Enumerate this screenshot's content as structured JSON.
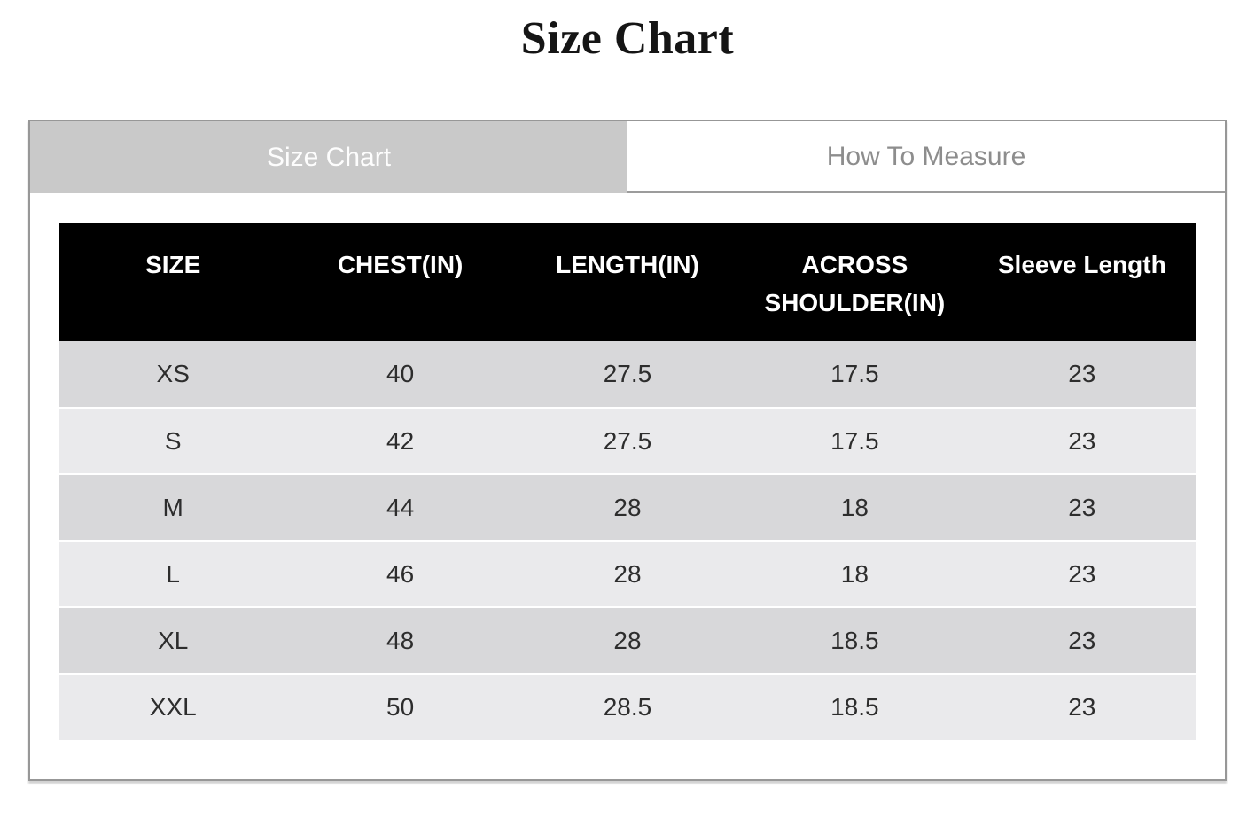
{
  "page": {
    "title": "Size Chart"
  },
  "tabs": {
    "size_chart": {
      "label": "Size Chart",
      "active": true
    },
    "how_to_measure": {
      "label": "How To Measure",
      "active": false
    }
  },
  "size_table": {
    "columns": [
      "SIZE",
      "CHEST(IN)",
      "LENGTH(IN)",
      "ACROSS SHOULDER(IN)",
      "Sleeve Length"
    ],
    "rows": [
      [
        "XS",
        "40",
        "27.5",
        "17.5",
        "23"
      ],
      [
        "S",
        "42",
        "27.5",
        "17.5",
        "23"
      ],
      [
        "M",
        "44",
        "28",
        "18",
        "23"
      ],
      [
        "L",
        "46",
        "28",
        "18",
        "23"
      ],
      [
        "XL",
        "48",
        "28",
        "18.5",
        "23"
      ],
      [
        "XXL",
        "50",
        "28.5",
        "18.5",
        "23"
      ]
    ]
  },
  "colors": {
    "table_header_bg": "#000000",
    "table_header_text": "#ffffff",
    "row_dark": "#d8d8da",
    "row_light": "#eaeaec",
    "active_tab_bg": "#c9c9c9",
    "active_tab_text": "#fdfdfd",
    "inactive_tab_text": "#8d8d8d",
    "panel_border": "#979797",
    "body_text": "#2d2d2d"
  }
}
